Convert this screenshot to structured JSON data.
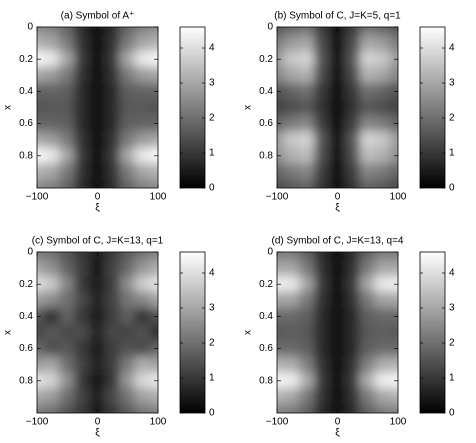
{
  "chart_data": [
    {
      "type": "heatmap",
      "title": "(a) Symbol of A⁺",
      "xlabel": "ξ",
      "ylabel": "x",
      "colormap": "gray",
      "yreverse": true,
      "x": [
        -100,
        -75,
        -50,
        -25,
        0,
        25,
        50,
        75,
        100
      ],
      "y": [
        0,
        0.1,
        0.2,
        0.3,
        0.4,
        0.5,
        0.6,
        0.7,
        0.8,
        0.9,
        1.0
      ],
      "z": [
        [
          2.5,
          2.3,
          1.8,
          0.8,
          0.3,
          0.8,
          1.8,
          2.3,
          2.5
        ],
        [
          3.2,
          3.0,
          2.2,
          0.9,
          0.3,
          0.9,
          2.2,
          3.0,
          3.2
        ],
        [
          4.5,
          4.2,
          3.0,
          1.0,
          0.3,
          1.0,
          3.0,
          4.2,
          4.5
        ],
        [
          3.0,
          2.8,
          2.2,
          0.9,
          0.3,
          0.9,
          2.2,
          2.8,
          3.0
        ],
        [
          1.8,
          1.8,
          1.7,
          0.8,
          0.3,
          0.8,
          1.7,
          1.8,
          1.8
        ],
        [
          1.5,
          1.6,
          1.6,
          0.8,
          0.3,
          0.8,
          1.6,
          1.6,
          1.5
        ],
        [
          1.8,
          1.8,
          1.7,
          0.8,
          0.3,
          0.8,
          1.7,
          1.8,
          1.8
        ],
        [
          3.0,
          2.8,
          2.2,
          0.9,
          0.3,
          0.9,
          2.2,
          2.8,
          3.0
        ],
        [
          4.5,
          4.2,
          3.0,
          1.0,
          0.3,
          1.0,
          3.0,
          4.2,
          4.5
        ],
        [
          3.2,
          3.0,
          2.2,
          0.9,
          0.3,
          0.9,
          2.2,
          3.0,
          3.2
        ],
        [
          2.5,
          2.3,
          1.8,
          0.8,
          0.3,
          0.8,
          1.8,
          2.3,
          2.5
        ]
      ],
      "xlim": [
        -100,
        100
      ],
      "xticks": [
        {
          "value": -100,
          "label": "−100"
        },
        0,
        100
      ],
      "ylim": [
        0,
        1
      ],
      "yticks": [
        0,
        0.2,
        0.4,
        0.6,
        0.8
      ],
      "clim": [
        0,
        4.6
      ],
      "cticks": [
        0,
        1,
        2,
        3,
        4
      ]
    },
    {
      "type": "heatmap",
      "title": "(b) Symbol of C, J=K=5, q=1",
      "xlabel": "ξ",
      "ylabel": "x",
      "colormap": "gray",
      "yreverse": true,
      "x": [
        -100,
        -75,
        -50,
        -25,
        0,
        25,
        50,
        75,
        100
      ],
      "y": [
        0,
        0.1,
        0.2,
        0.3,
        0.4,
        0.5,
        0.6,
        0.7,
        0.8,
        0.9,
        1.0
      ],
      "z": [
        [
          1.5,
          1.8,
          2.0,
          1.0,
          0.2,
          1.0,
          2.0,
          1.8,
          1.5
        ],
        [
          2.2,
          2.8,
          3.0,
          1.3,
          0.2,
          1.3,
          3.0,
          2.8,
          2.2
        ],
        [
          2.8,
          3.6,
          3.8,
          1.5,
          0.2,
          1.5,
          3.8,
          3.6,
          2.8
        ],
        [
          2.4,
          3.0,
          3.2,
          1.3,
          0.2,
          1.3,
          3.2,
          3.0,
          2.4
        ],
        [
          1.5,
          1.8,
          2.0,
          1.0,
          0.2,
          1.0,
          2.0,
          1.8,
          1.5
        ],
        [
          1.2,
          1.4,
          1.6,
          0.9,
          0.2,
          0.9,
          1.6,
          1.4,
          1.2
        ],
        [
          1.8,
          2.2,
          2.4,
          1.1,
          0.2,
          1.1,
          2.4,
          2.2,
          1.8
        ],
        [
          2.8,
          3.6,
          3.8,
          1.5,
          0.2,
          1.5,
          3.8,
          3.6,
          2.8
        ],
        [
          2.6,
          3.2,
          3.4,
          1.4,
          0.2,
          1.4,
          3.4,
          3.2,
          2.6
        ],
        [
          1.8,
          2.2,
          2.4,
          1.1,
          0.2,
          1.1,
          2.4,
          2.2,
          1.8
        ],
        [
          1.3,
          1.6,
          1.8,
          0.9,
          0.2,
          0.9,
          1.8,
          1.6,
          1.3
        ]
      ],
      "xlim": [
        -100,
        100
      ],
      "xticks": [
        {
          "value": -100,
          "label": "−100"
        },
        0,
        100
      ],
      "ylim": [
        0,
        1
      ],
      "yticks": [
        0,
        0.2,
        0.4,
        0.6,
        0.8
      ],
      "clim": [
        0,
        4.6
      ],
      "cticks": [
        0,
        1,
        2,
        3,
        4
      ]
    },
    {
      "type": "heatmap",
      "title": "(c) Symbol of C, J=K=13, q=1",
      "xlabel": "ξ",
      "ylabel": "x",
      "colormap": "gray",
      "yreverse": true,
      "x": [
        -100,
        -75,
        -50,
        -25,
        0,
        25,
        50,
        75,
        100
      ],
      "y": [
        0,
        0.1,
        0.2,
        0.3,
        0.4,
        0.5,
        0.6,
        0.7,
        0.8,
        0.9,
        1.0
      ],
      "z": [
        [
          2.2,
          2.0,
          1.5,
          1.0,
          0.5,
          1.0,
          1.6,
          2.0,
          2.3
        ],
        [
          3.0,
          2.6,
          1.8,
          1.1,
          0.4,
          1.2,
          1.9,
          2.7,
          3.1
        ],
        [
          4.0,
          3.6,
          2.4,
          1.0,
          0.5,
          1.1,
          2.5,
          3.7,
          4.1
        ],
        [
          2.8,
          2.5,
          2.0,
          1.3,
          0.6,
          1.2,
          2.1,
          2.4,
          2.9
        ],
        [
          1.6,
          0.8,
          1.8,
          1.0,
          0.5,
          1.1,
          1.7,
          0.9,
          1.5
        ],
        [
          1.2,
          1.6,
          1.3,
          1.4,
          0.6,
          1.3,
          1.2,
          1.5,
          0.8
        ],
        [
          1.9,
          1.4,
          1.6,
          1.0,
          0.5,
          1.1,
          1.5,
          1.3,
          1.8
        ],
        [
          2.8,
          3.0,
          2.0,
          1.2,
          0.6,
          1.1,
          2.2,
          3.1,
          2.9
        ],
        [
          4.1,
          3.8,
          2.6,
          1.0,
          0.4,
          1.0,
          2.7,
          3.9,
          4.2
        ],
        [
          3.0,
          2.8,
          2.0,
          1.2,
          0.5,
          1.3,
          2.1,
          2.9,
          3.1
        ],
        [
          2.2,
          2.0,
          1.5,
          1.0,
          0.4,
          1.0,
          1.6,
          2.1,
          2.3
        ]
      ],
      "xlim": [
        -100,
        100
      ],
      "xticks": [
        {
          "value": -100,
          "label": "−100"
        },
        0,
        100
      ],
      "ylim": [
        0,
        1
      ],
      "yticks": [
        0,
        0.2,
        0.4,
        0.6,
        0.8
      ],
      "clim": [
        0,
        4.6
      ],
      "cticks": [
        0,
        1,
        2,
        3,
        4
      ]
    },
    {
      "type": "heatmap",
      "title": "(d) Symbol of C, J=K=13, q=4",
      "xlabel": "ξ",
      "ylabel": "x",
      "colormap": "gray",
      "yreverse": true,
      "x": [
        -100,
        -75,
        -50,
        -25,
        0,
        25,
        50,
        75,
        100
      ],
      "y": [
        0,
        0.1,
        0.2,
        0.3,
        0.4,
        0.5,
        0.6,
        0.7,
        0.8,
        0.9,
        1.0
      ],
      "z": [
        [
          2.2,
          2.2,
          1.7,
          0.8,
          0.3,
          0.8,
          1.7,
          2.2,
          2.2
        ],
        [
          3.0,
          3.0,
          2.2,
          0.9,
          0.3,
          0.9,
          2.2,
          3.0,
          3.0
        ],
        [
          4.3,
          4.2,
          3.0,
          1.0,
          0.3,
          1.0,
          3.0,
          4.2,
          4.3
        ],
        [
          3.0,
          2.9,
          2.2,
          0.9,
          0.3,
          0.9,
          2.2,
          2.9,
          3.0
        ],
        [
          1.9,
          1.9,
          1.7,
          0.8,
          0.3,
          0.8,
          1.7,
          1.9,
          1.9
        ],
        [
          1.6,
          1.7,
          1.6,
          0.8,
          0.3,
          0.8,
          1.6,
          1.7,
          1.6
        ],
        [
          1.9,
          1.9,
          1.7,
          0.8,
          0.3,
          0.8,
          1.7,
          1.9,
          1.9
        ],
        [
          3.2,
          3.1,
          2.3,
          0.9,
          0.3,
          0.9,
          2.3,
          3.1,
          3.2
        ],
        [
          4.4,
          4.3,
          3.1,
          1.0,
          0.3,
          1.0,
          3.1,
          4.3,
          4.4
        ],
        [
          3.2,
          3.0,
          2.2,
          0.9,
          0.3,
          0.9,
          2.2,
          3.0,
          3.2
        ],
        [
          2.3,
          2.2,
          1.7,
          0.8,
          0.3,
          0.8,
          1.7,
          2.2,
          2.3
        ]
      ],
      "xlim": [
        -100,
        100
      ],
      "xticks": [
        {
          "value": -100,
          "label": "−100"
        },
        0,
        100
      ],
      "ylim": [
        0,
        1
      ],
      "yticks": [
        0,
        0.2,
        0.4,
        0.6,
        0.8
      ],
      "clim": [
        0,
        4.6
      ],
      "cticks": [
        0,
        1,
        2,
        3,
        4
      ]
    }
  ]
}
